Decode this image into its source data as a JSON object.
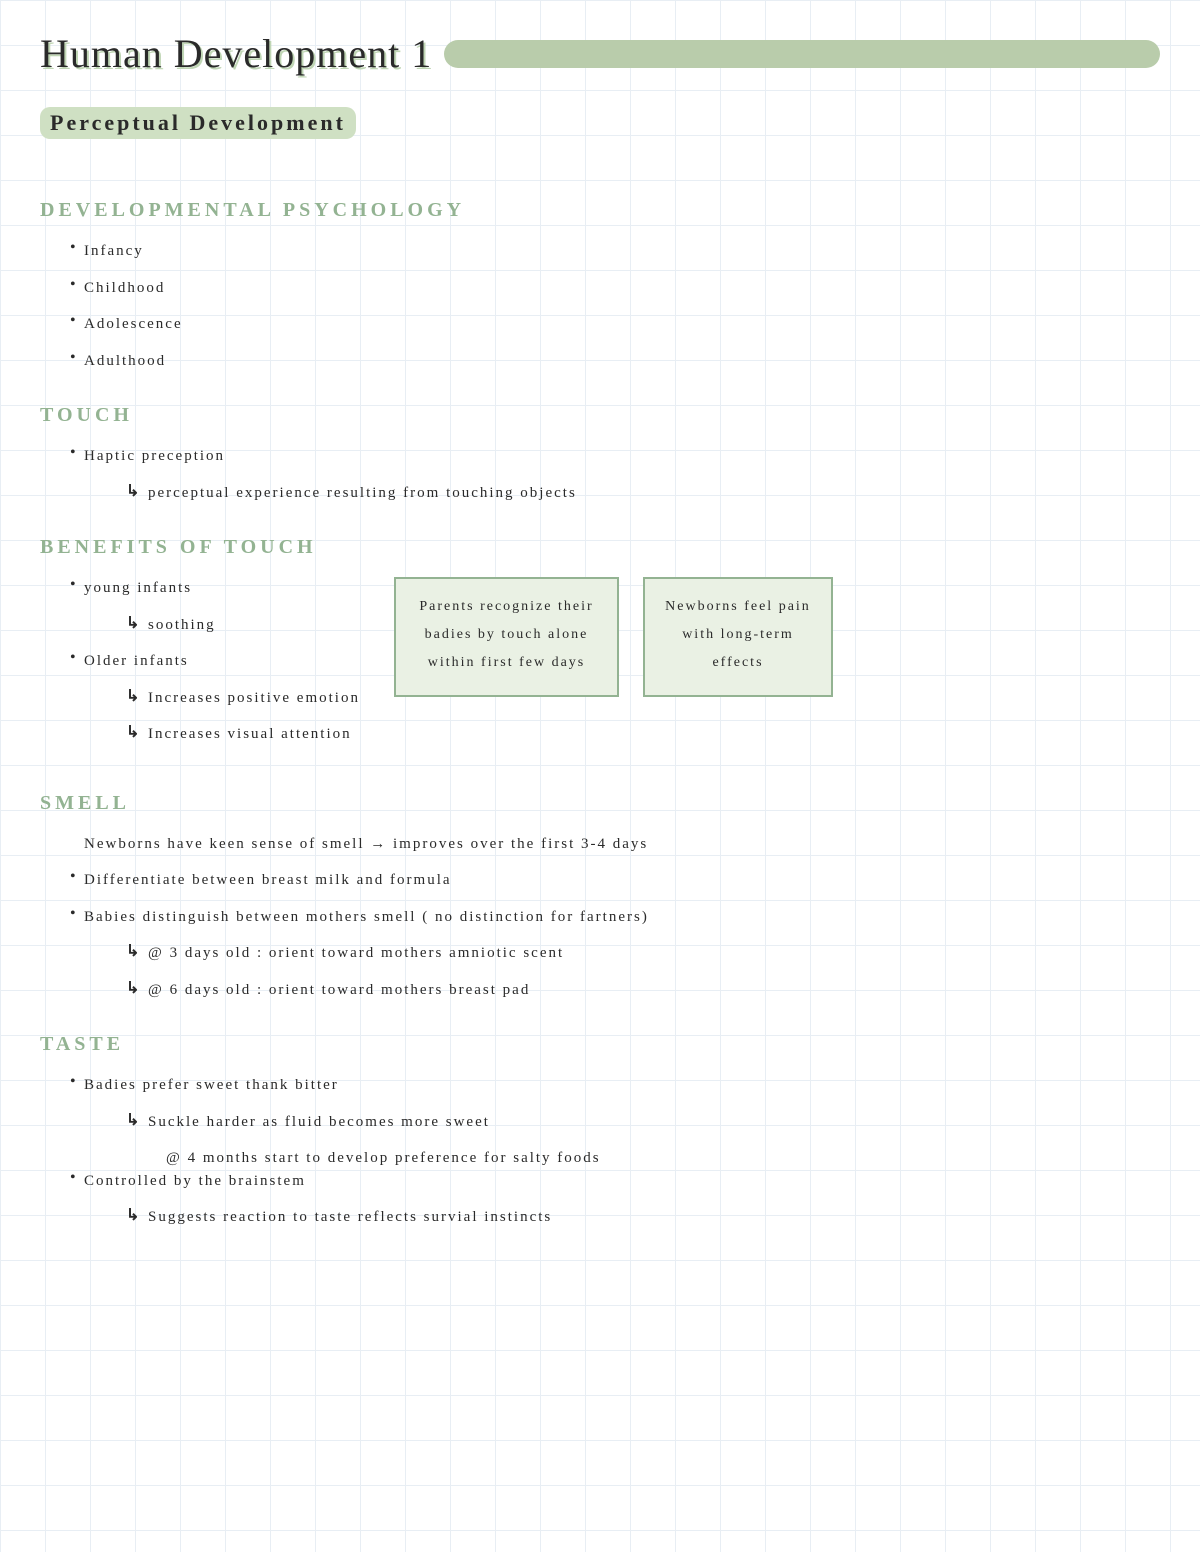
{
  "title": "Human Development 1",
  "subtitle": "Perceptual Development",
  "sections": {
    "dev_psych": {
      "heading": "DEVELOPMENTAL PSYCHOLOGY",
      "items": [
        "Infancy",
        "Childhood",
        "Adolescence",
        "Adulthood"
      ]
    },
    "touch": {
      "heading": "TOUCH",
      "main": "Haptic preception",
      "sub": "perceptual experience resulting from touching objects"
    },
    "benefits": {
      "heading": "BENEFITS OF TOUCH",
      "young": "young infants",
      "young_sub": "soothing",
      "older": "Older infants",
      "older_sub1": "Increases positive emotion",
      "older_sub2": "Increases visual attention",
      "callout_a": "Parents recognize their badies by touch alone within first few days",
      "callout_b": "Newborns feel pain with long-term effects"
    },
    "smell": {
      "heading": "SMELL",
      "line1": "Newborns have keen sense of smell → improves over the first 3-4 days",
      "line2": "Differentiate between breast milk and formula",
      "line3": "Babies distinguish between mothers smell ( no distinction for fartners)",
      "sub1": "@ 3 days old : orient toward mothers amniotic scent",
      "sub2": "@ 6 days old : orient toward mothers breast pad"
    },
    "taste": {
      "heading": "TASTE",
      "line1": "Badies prefer sweet thank bitter",
      "sub1": "Suckle harder as fluid becomes more sweet",
      "line2": "@ 4 months start to develop preference for salty foods",
      "line3": "Controlled by the brainstem",
      "sub3": "Suggests reaction to taste reflects survial instincts"
    }
  },
  "colors": {
    "grid": "#e8eef4",
    "sage": "#b9ccab",
    "sage_light": "#cfe0c3",
    "sage_text": "#93b392",
    "callout_bg": "#eaf1e4",
    "text": "#2a2a2a"
  }
}
